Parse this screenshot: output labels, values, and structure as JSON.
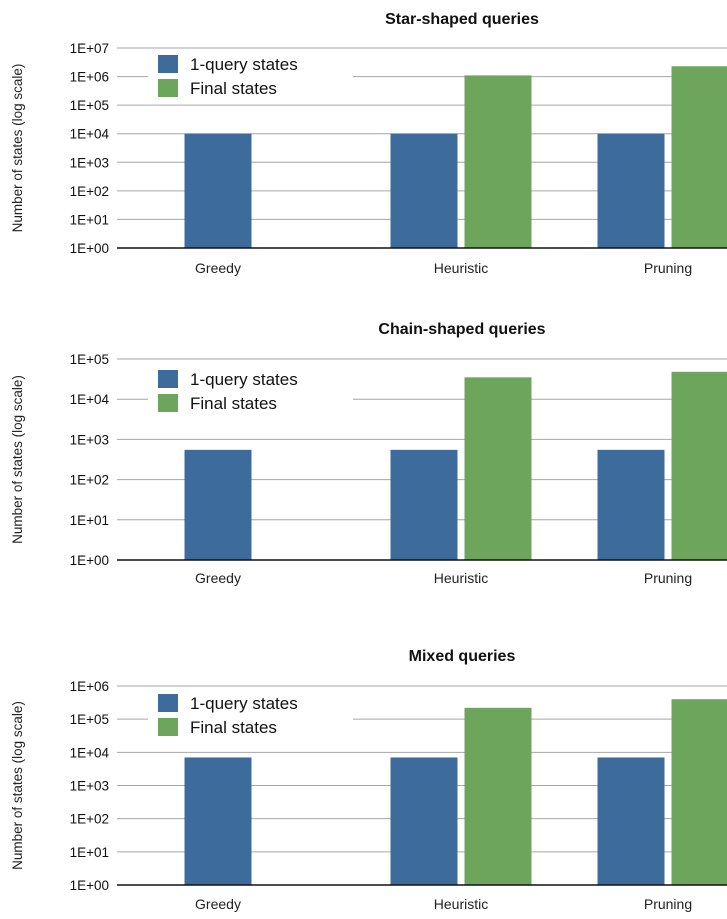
{
  "chart_data": [
    {
      "type": "bar",
      "title": "Star-shaped queries",
      "ylabel": "Number of states (log scale)",
      "xlabel": "",
      "yscale": "log",
      "ylim": [
        1,
        10000000
      ],
      "ytick_labels": [
        "1E+00",
        "1E+01",
        "1E+02",
        "1E+03",
        "1E+04",
        "1E+05",
        "1E+06",
        "1E+07"
      ],
      "categories": [
        "Greedy",
        "Heuristic",
        "Pruning"
      ],
      "series": [
        {
          "name": "1-query states",
          "color": "#3d6b9c",
          "values": [
            10000,
            10000,
            10000
          ]
        },
        {
          "name": "Final states",
          "color": "#6ea55c",
          "values": [
            null,
            1100000,
            2300000
          ]
        }
      ],
      "legend": "top-left",
      "grid": true
    },
    {
      "type": "bar",
      "title": "Chain-shaped queries",
      "ylabel": "Number of states (log scale)",
      "xlabel": "",
      "yscale": "log",
      "ylim": [
        1,
        100000
      ],
      "ytick_labels": [
        "1E+00",
        "1E+01",
        "1E+02",
        "1E+03",
        "1E+04",
        "1E+05"
      ],
      "categories": [
        "Greedy",
        "Heuristic",
        "Pruning"
      ],
      "series": [
        {
          "name": "1-query states",
          "color": "#3d6b9c",
          "values": [
            550,
            550,
            550
          ]
        },
        {
          "name": "Final states",
          "color": "#6ea55c",
          "values": [
            null,
            35000,
            48000
          ]
        }
      ],
      "legend": "top-left",
      "grid": true
    },
    {
      "type": "bar",
      "title": "Mixed queries",
      "ylabel": "Number of states (log scale)",
      "xlabel": "",
      "yscale": "log",
      "ylim": [
        1,
        1000000
      ],
      "ytick_labels": [
        "1E+00",
        "1E+01",
        "1E+02",
        "1E+03",
        "1E+04",
        "1E+05",
        "1E+06"
      ],
      "categories": [
        "Greedy",
        "Heuristic",
        "Pruning"
      ],
      "series": [
        {
          "name": "1-query states",
          "color": "#3d6b9c",
          "values": [
            7000,
            7000,
            7000
          ]
        },
        {
          "name": "Final states",
          "color": "#6ea55c",
          "values": [
            null,
            220000,
            400000
          ]
        }
      ],
      "legend": "top-left",
      "grid": true
    }
  ]
}
